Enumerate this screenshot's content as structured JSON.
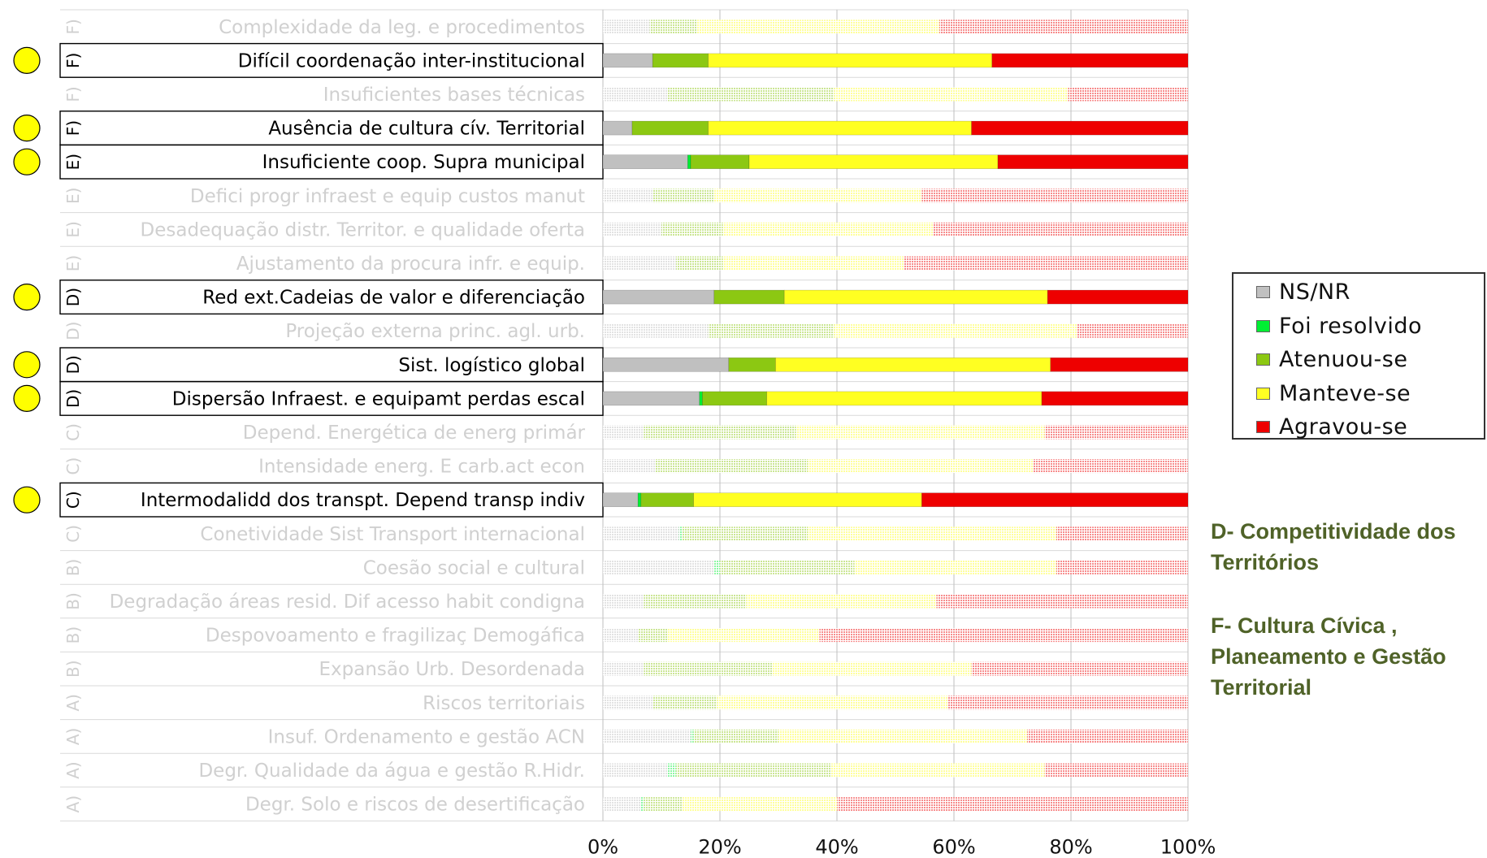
{
  "chart_data": {
    "type": "bar",
    "orientation": "horizontal",
    "stacked": true,
    "percent": true,
    "xlim": [
      0,
      100
    ],
    "xticks": [
      "0%",
      "20%",
      "40%",
      "60%",
      "80%",
      "100%"
    ],
    "grid": true,
    "legend_position": "right",
    "categories": [
      {
        "group": "F)",
        "label": "Complexidade da leg. e procedimentos",
        "highlighted": false,
        "values": [
          8,
          0,
          8,
          41.5,
          42.5
        ]
      },
      {
        "group": "F)",
        "label": "Difícil coordenação inter-institucional",
        "highlighted": true,
        "values": [
          8.5,
          0,
          9.5,
          48.5,
          33.5
        ]
      },
      {
        "group": "F)",
        "label": "Insuficientes bases técnicas",
        "highlighted": false,
        "values": [
          11,
          0,
          28.5,
          40,
          20.5
        ]
      },
      {
        "group": "F)",
        "label": "Ausência de cultura cív. Territorial",
        "highlighted": true,
        "values": [
          5,
          0,
          13,
          45,
          37
        ]
      },
      {
        "group": "E)",
        "label": "Insuficiente coop. Supra municipal",
        "highlighted": true,
        "values": [
          14.5,
          0.5,
          10,
          42.5,
          32.5
        ]
      },
      {
        "group": "E)",
        "label": "Defici progr infraest e equip custos manut",
        "highlighted": false,
        "values": [
          8.5,
          0,
          10.5,
          35.5,
          45.5
        ]
      },
      {
        "group": "E)",
        "label": "Desadequação distr. Territor. e qualidade oferta",
        "highlighted": false,
        "values": [
          10,
          0,
          10.5,
          36,
          43.5
        ]
      },
      {
        "group": "E)",
        "label": "Ajustamento da procura  infr. e equip.",
        "highlighted": false,
        "values": [
          12.5,
          0,
          8,
          31,
          48.5
        ]
      },
      {
        "group": "D)",
        "label": "Red ext.Cadeias de valor e diferenciação",
        "highlighted": true,
        "values": [
          19,
          0,
          12,
          45,
          24
        ]
      },
      {
        "group": "D)",
        "label": "Projeção externa princ. agl. urb.",
        "highlighted": false,
        "values": [
          18,
          0,
          21.5,
          41.5,
          19
        ]
      },
      {
        "group": "D)",
        "label": "Sist. logístico global",
        "highlighted": true,
        "values": [
          21.5,
          0,
          8,
          47,
          23.5
        ]
      },
      {
        "group": "D)",
        "label": "Dispersão Infraest. e equipamt perdas escal",
        "highlighted": true,
        "values": [
          16.5,
          0.5,
          11,
          47,
          25
        ]
      },
      {
        "group": "C)",
        "label": "Depend. Energética de energ primár",
        "highlighted": false,
        "values": [
          7,
          0,
          26,
          42.5,
          24.5
        ]
      },
      {
        "group": "C)",
        "label": "Intensidade energ. E carb.act econ",
        "highlighted": false,
        "values": [
          9,
          0,
          26,
          38.5,
          26.5
        ]
      },
      {
        "group": "C)",
        "label": "Intermodalidd dos transpt. Depend transp indiv",
        "highlighted": true,
        "values": [
          6,
          0.5,
          9,
          39,
          45.5
        ]
      },
      {
        "group": "C)",
        "label": "Conetividade Sist Transport internacional",
        "highlighted": false,
        "values": [
          13,
          0.5,
          21.5,
          42.5,
          22.5
        ]
      },
      {
        "group": "B)",
        "label": "Coesão social e cultural",
        "highlighted": false,
        "values": [
          19,
          1,
          23,
          34.5,
          22.5
        ]
      },
      {
        "group": "B)",
        "label": "Degradação áreas resid. Dif acesso habit condigna",
        "highlighted": false,
        "values": [
          7,
          0,
          17.5,
          32.5,
          43
        ]
      },
      {
        "group": "B)",
        "label": "Despovoamento e fragilizaç Demogáfica",
        "highlighted": false,
        "values": [
          6,
          0,
          5,
          26,
          63
        ]
      },
      {
        "group": "B)",
        "label": "Expansão Urb. Desordenada",
        "highlighted": false,
        "values": [
          7,
          0,
          22,
          34,
          37
        ]
      },
      {
        "group": "A)",
        "label": "Riscos territoriais",
        "highlighted": false,
        "values": [
          8.5,
          0,
          11,
          39.5,
          41
        ]
      },
      {
        "group": "A)",
        "label": "Insuf. Ordenamento e gestão ACN",
        "highlighted": false,
        "values": [
          15,
          0.5,
          14.5,
          42.5,
          27.5
        ]
      },
      {
        "group": "A)",
        "label": "Degr. Qualidade da água e gestão R.Hidr.",
        "highlighted": false,
        "values": [
          11,
          1.5,
          26.5,
          36.5,
          24.5
        ]
      },
      {
        "group": "A)",
        "label": "Degr. Solo e riscos de desertificação",
        "highlighted": false,
        "values": [
          6.5,
          0.5,
          6.5,
          26.5,
          60
        ]
      }
    ],
    "series": [
      {
        "name": "NS/NR",
        "color": "#c0c0c0"
      },
      {
        "name": "Foi resolvido",
        "color": "#00ee33"
      },
      {
        "name": "Atenuou-se",
        "color": "#8cc812"
      },
      {
        "name": "Manteve-se",
        "color": "#ffff22"
      },
      {
        "name": "Agravou-se",
        "color": "#ee0000"
      }
    ]
  },
  "notes": [
    {
      "lines": [
        "D- Competitividade dos",
        "Territórios"
      ]
    },
    {
      "lines": [
        "F- Cultura Cívica ,",
        "Planeamento e Gestão",
        "Territorial"
      ]
    }
  ],
  "colors": {
    "marker": "#ffff00",
    "note_text": "#4f6228"
  }
}
